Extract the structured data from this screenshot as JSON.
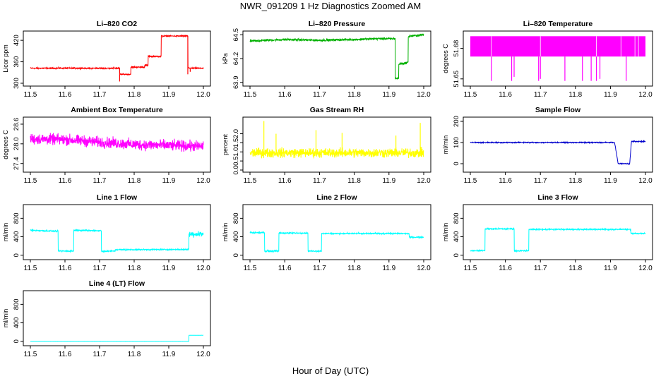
{
  "figure": {
    "title": "NWR_091209  1 Hz Diagnostics Zoomed AM",
    "xlabel": "Hour of Day (UTC)"
  },
  "chart_data": [
    {
      "type": "line",
      "title": "Li–820 CO2",
      "ylabel": "Licor ppm",
      "color": "#ff0000",
      "xlim": [
        11.5,
        12.0
      ],
      "ylim": [
        298,
        440
      ],
      "yticks": [
        "300",
        "360",
        "420"
      ],
      "xticks": [
        "11.5",
        "11.6",
        "11.7",
        "11.8",
        "11.9",
        "12.0"
      ],
      "noise": 1.5,
      "segments": [
        [
          11.5,
          342
        ],
        [
          11.758,
          342
        ],
        [
          11.758,
          325
        ],
        [
          11.79,
          325
        ],
        [
          11.79,
          345
        ],
        [
          11.83,
          345
        ],
        [
          11.83,
          350
        ],
        [
          11.84,
          350
        ],
        [
          11.84,
          375
        ],
        [
          11.878,
          375
        ],
        [
          11.878,
          432
        ],
        [
          11.955,
          432
        ],
        [
          11.955,
          345
        ],
        [
          11.96,
          342
        ],
        [
          12.0,
          342
        ]
      ],
      "spikes": [
        [
          11.758,
          305
        ],
        [
          11.955,
          325
        ],
        [
          11.962,
          332
        ]
      ]
    },
    {
      "type": "line",
      "title": "Li–820 Pressure",
      "ylabel": "kPa",
      "color": "#00b000",
      "xlim": [
        11.5,
        12.0
      ],
      "ylim": [
        63.88,
        64.52
      ],
      "yticks": [
        "63.9",
        "64.2",
        "64.5"
      ],
      "xticks": [
        "11.5",
        "11.6",
        "11.7",
        "11.8",
        "11.9",
        "12.0"
      ],
      "noise": 0.012,
      "segments": [
        [
          11.5,
          64.42
        ],
        [
          11.6,
          64.44
        ],
        [
          11.7,
          64.43
        ],
        [
          11.8,
          64.44
        ],
        [
          11.86,
          64.45
        ],
        [
          11.918,
          64.45
        ],
        [
          11.918,
          63.95
        ],
        [
          11.928,
          63.95
        ],
        [
          11.928,
          64.13
        ],
        [
          11.955,
          64.15
        ],
        [
          11.955,
          64.48
        ],
        [
          12.0,
          64.5
        ]
      ],
      "spikes": []
    },
    {
      "type": "band",
      "title": "Li–820 Temperature",
      "ylabel": "degrees C",
      "color": "#ff00ff",
      "xlim": [
        11.5,
        12.0
      ],
      "ylim": [
        51.645,
        51.695
      ],
      "yticks": [
        "51.65",
        "51.68"
      ],
      "xticks": [
        "11.5",
        "11.6",
        "11.7",
        "11.8",
        "11.9",
        "12.0"
      ],
      "band": [
        51.672,
        51.692
      ],
      "spikes": [
        [
          11.56,
          51.648
        ],
        [
          11.618,
          51.648
        ],
        [
          11.625,
          51.652
        ],
        [
          11.695,
          51.648
        ],
        [
          11.7,
          51.65
        ],
        [
          11.77,
          51.648
        ],
        [
          11.82,
          51.648
        ],
        [
          11.845,
          51.648
        ],
        [
          11.86,
          51.648
        ],
        [
          11.87,
          51.65
        ],
        [
          11.945,
          51.648
        ]
      ]
    },
    {
      "type": "line",
      "title": "Ambient Box Temperature",
      "ylabel": "degrees C",
      "color": "#ff00ff",
      "xlim": [
        11.5,
        12.0
      ],
      "ylim": [
        27.2,
        28.75
      ],
      "yticks": [
        "27.4",
        "28.0",
        "28.6"
      ],
      "xticks": [
        "11.5",
        "11.6",
        "11.7",
        "11.8",
        "11.9",
        "12.0"
      ],
      "noise": 0.14,
      "segments": [
        [
          11.5,
          28.15
        ],
        [
          11.6,
          28.13
        ],
        [
          11.7,
          28.05
        ],
        [
          11.8,
          27.98
        ],
        [
          11.9,
          27.95
        ],
        [
          12.0,
          27.92
        ]
      ],
      "spikes": []
    },
    {
      "type": "line",
      "title": "Gas Stream RH",
      "ylabel": "percent",
      "color": "#ffff00",
      "xlim": [
        11.5,
        12.0
      ],
      "ylim": [
        0,
        2.8
      ],
      "yticks": [
        "0.0",
        "0.5",
        "1.0",
        "1.5",
        "2.0"
      ],
      "xticks": [
        "11.5",
        "11.6",
        "11.7",
        "11.8",
        "11.9",
        "12.0"
      ],
      "noise": 0.22,
      "segments": [
        [
          11.5,
          0.95
        ],
        [
          12.0,
          0.95
        ]
      ],
      "spikes": [
        [
          11.54,
          2.7
        ],
        [
          11.575,
          2.0
        ],
        [
          11.69,
          2.2
        ],
        [
          11.765,
          2.05
        ],
        [
          11.92,
          1.9
        ],
        [
          11.99,
          2.6
        ]
      ]
    },
    {
      "type": "line",
      "title": "Sample Flow",
      "ylabel": "ml/min",
      "color": "#0000cc",
      "xlim": [
        11.5,
        12.0
      ],
      "ylim": [
        -30,
        210
      ],
      "yticks": [
        "0",
        "100",
        "200"
      ],
      "xticks": [
        "11.5",
        "11.6",
        "11.7",
        "11.8",
        "11.9",
        "12.0"
      ],
      "noise": 2,
      "segments": [
        [
          11.5,
          100
        ],
        [
          11.912,
          100
        ],
        [
          11.922,
          0
        ],
        [
          11.955,
          0
        ],
        [
          11.96,
          105
        ],
        [
          12.0,
          105
        ]
      ],
      "spikes": []
    },
    {
      "type": "line",
      "title": "Line 1 Flow",
      "ylabel": "ml/min",
      "color": "#00ffff",
      "xlim": [
        11.5,
        12.0
      ],
      "ylim": [
        -50,
        1050
      ],
      "yticks": [
        "0",
        "400",
        "800"
      ],
      "xticks": [
        "11.5",
        "11.6",
        "11.7",
        "11.8",
        "11.9",
        "12.0"
      ],
      "noise": 12,
      "segments": [
        [
          11.5,
          540
        ],
        [
          11.58,
          520
        ],
        [
          11.58,
          90
        ],
        [
          11.625,
          90
        ],
        [
          11.625,
          540
        ],
        [
          11.705,
          530
        ],
        [
          11.705,
          85
        ],
        [
          11.745,
          90
        ],
        [
          11.745,
          120
        ],
        [
          11.958,
          125
        ],
        [
          11.958,
          460
        ],
        [
          12.0,
          460
        ]
      ],
      "spikes": [],
      "wideNoiseFrom": 11.958,
      "wideNoise": 55
    },
    {
      "type": "line",
      "title": "Line 2 Flow",
      "ylabel": "ml/min",
      "color": "#00ffff",
      "xlim": [
        11.5,
        12.0
      ],
      "ylim": [
        -50,
        1050
      ],
      "yticks": [
        "0",
        "400",
        "800"
      ],
      "xticks": [
        "11.5",
        "11.6",
        "11.7",
        "11.8",
        "11.9",
        "12.0"
      ],
      "noise": 12,
      "segments": [
        [
          11.5,
          490
        ],
        [
          11.542,
          490
        ],
        [
          11.542,
          90
        ],
        [
          11.583,
          90
        ],
        [
          11.583,
          480
        ],
        [
          11.667,
          480
        ],
        [
          11.667,
          90
        ],
        [
          11.706,
          90
        ],
        [
          11.706,
          470
        ],
        [
          11.958,
          470
        ],
        [
          11.958,
          390
        ],
        [
          12.0,
          390
        ]
      ],
      "spikes": []
    },
    {
      "type": "line",
      "title": "Line 3 Flow",
      "ylabel": "ml/min",
      "color": "#00ffff",
      "xlim": [
        11.5,
        12.0
      ],
      "ylim": [
        -50,
        1050
      ],
      "yticks": [
        "0",
        "400",
        "800"
      ],
      "xticks": [
        "11.5",
        "11.6",
        "11.7",
        "11.8",
        "11.9",
        "12.0"
      ],
      "noise": 12,
      "segments": [
        [
          11.5,
          100
        ],
        [
          11.542,
          100
        ],
        [
          11.542,
          570
        ],
        [
          11.625,
          570
        ],
        [
          11.625,
          95
        ],
        [
          11.667,
          95
        ],
        [
          11.667,
          560
        ],
        [
          11.958,
          560
        ],
        [
          11.958,
          470
        ],
        [
          12.0,
          470
        ]
      ],
      "spikes": []
    },
    {
      "type": "line",
      "title": "Line 4 (LT) Flow",
      "ylabel": "ml/min",
      "color": "#00ffff",
      "xlim": [
        11.5,
        12.0
      ],
      "ylim": [
        -50,
        1050
      ],
      "yticks": [
        "0",
        "400",
        "800"
      ],
      "xticks": [
        "11.5",
        "11.6",
        "11.7",
        "11.8",
        "11.9",
        "12.0"
      ],
      "noise": 1,
      "segments": [
        [
          11.5,
          0
        ],
        [
          11.958,
          0
        ],
        [
          11.958,
          130
        ],
        [
          12.0,
          130
        ]
      ],
      "spikes": []
    }
  ]
}
